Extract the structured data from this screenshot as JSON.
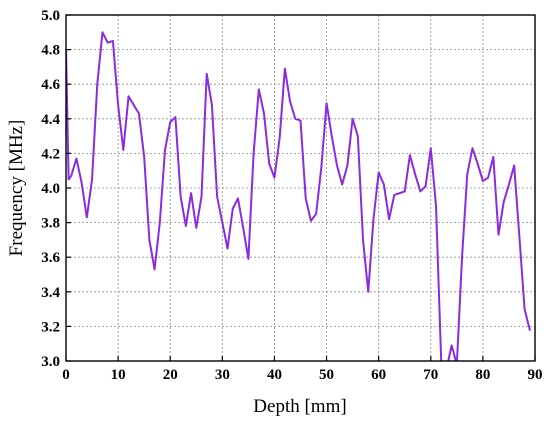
{
  "chart_data": {
    "type": "line",
    "title": "",
    "xlabel": "Depth [mm]",
    "ylabel": "Frequency [MHz]",
    "xlim": [
      0,
      90
    ],
    "ylim": [
      3.0,
      5.0
    ],
    "x_ticks": [
      0,
      10,
      20,
      30,
      40,
      50,
      60,
      70,
      80,
      90
    ],
    "y_ticks": [
      3.0,
      3.2,
      3.4,
      3.6,
      3.8,
      4.0,
      4.2,
      4.4,
      4.6,
      4.8,
      5.0
    ],
    "x_tick_labels": [
      "0",
      "10",
      "20",
      "30",
      "40",
      "50",
      "60",
      "70",
      "80",
      "90"
    ],
    "y_tick_labels": [
      "3.0",
      "3.2",
      "3.4",
      "3.6",
      "3.8",
      "4.0",
      "4.2",
      "4.4",
      "4.6",
      "4.8",
      "5.0"
    ],
    "grid": true,
    "legend": "none",
    "series": [
      {
        "color": "#8a2be2",
        "x": [
          0,
          0.5,
          1,
          2,
          3,
          4,
          5,
          6,
          7,
          8,
          9,
          10,
          11,
          12,
          13,
          14,
          15,
          16,
          17,
          18,
          19,
          20,
          21,
          22,
          23,
          24,
          25,
          26,
          27,
          28,
          29,
          30,
          31,
          32,
          33,
          34,
          35,
          36,
          37,
          38,
          39,
          40,
          41,
          42,
          43,
          44,
          45,
          46,
          47,
          48,
          49,
          50,
          51,
          52,
          53,
          54,
          55,
          56,
          57,
          58,
          59,
          60,
          61,
          62,
          63,
          64,
          65,
          66,
          67,
          68,
          69,
          70,
          71,
          72,
          73,
          74,
          75,
          76,
          77,
          78,
          79,
          80,
          81,
          82,
          83,
          84,
          85,
          86,
          87,
          88,
          89
        ],
        "y": [
          4.8,
          4.05,
          4.07,
          4.17,
          4.03,
          3.83,
          4.05,
          4.6,
          4.9,
          4.84,
          4.85,
          4.48,
          4.22,
          4.53,
          4.48,
          4.43,
          4.18,
          3.7,
          3.53,
          3.8,
          4.22,
          4.38,
          4.41,
          3.95,
          3.78,
          3.97,
          3.77,
          3.95,
          4.66,
          4.48,
          3.95,
          3.8,
          3.65,
          3.88,
          3.94,
          3.77,
          3.59,
          4.2,
          4.57,
          4.43,
          4.14,
          4.06,
          4.29,
          4.69,
          4.5,
          4.4,
          4.39,
          3.94,
          3.81,
          3.85,
          4.12,
          4.49,
          4.3,
          4.13,
          4.02,
          4.13,
          4.4,
          4.3,
          3.7,
          3.4,
          3.82,
          4.09,
          4.02,
          3.82,
          3.96,
          3.97,
          3.98,
          4.19,
          4.08,
          3.98,
          4.01,
          4.23,
          3.9,
          3.0,
          2.95,
          3.09,
          2.98,
          3.6,
          4.08,
          4.23,
          4.14,
          4.04,
          4.06,
          4.18,
          3.73,
          3.92,
          4.02,
          4.13,
          3.72,
          3.3,
          3.18
        ]
      }
    ]
  }
}
